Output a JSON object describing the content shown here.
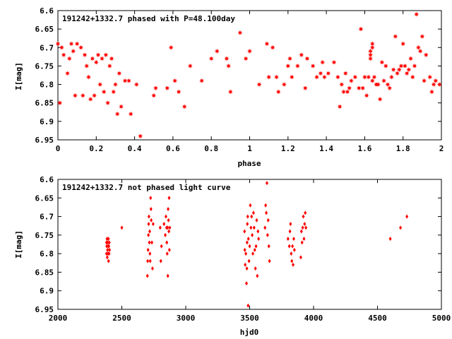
{
  "chart_data": [
    {
      "type": "scatter",
      "title": "191242+1332.7 phased with P=48.100day",
      "xlabel": "phase",
      "ylabel": "I[mag]",
      "xlim": [
        0,
        2
      ],
      "ylim": [
        6.95,
        6.6
      ],
      "y_inverted": true,
      "grid": false,
      "xticks": [
        "0",
        "0.2",
        "0.4",
        "0.6",
        "0.8",
        "1",
        "1.2",
        "1.4",
        "1.6",
        "1.8",
        "2"
      ],
      "yticks": [
        "6.6",
        "6.65",
        "6.7",
        "6.75",
        "6.8",
        "6.85",
        "6.9",
        "6.95"
      ],
      "marker": "filled-star",
      "color": "#ff0000",
      "points": [
        [
          0.0,
          6.69
        ],
        [
          0.01,
          6.85
        ],
        [
          0.02,
          6.7
        ],
        [
          0.03,
          6.72
        ],
        [
          0.05,
          6.77
        ],
        [
          0.06,
          6.73
        ],
        [
          0.07,
          6.69
        ],
        [
          0.08,
          6.71
        ],
        [
          0.09,
          6.83
        ],
        [
          0.1,
          6.69
        ],
        [
          0.12,
          6.7
        ],
        [
          0.13,
          6.83
        ],
        [
          0.14,
          6.72
        ],
        [
          0.15,
          6.75
        ],
        [
          0.16,
          6.78
        ],
        [
          0.17,
          6.84
        ],
        [
          0.18,
          6.73
        ],
        [
          0.19,
          6.83
        ],
        [
          0.2,
          6.74
        ],
        [
          0.21,
          6.72
        ],
        [
          0.22,
          6.8
        ],
        [
          0.23,
          6.73
        ],
        [
          0.24,
          6.82
        ],
        [
          0.25,
          6.72
        ],
        [
          0.26,
          6.85
        ],
        [
          0.27,
          6.75
        ],
        [
          0.28,
          6.73
        ],
        [
          0.29,
          6.82
        ],
        [
          0.3,
          6.8
        ],
        [
          0.31,
          6.88
        ],
        [
          0.32,
          6.77
        ],
        [
          0.33,
          6.86
        ],
        [
          0.35,
          6.79
        ],
        [
          0.37,
          6.79
        ],
        [
          0.38,
          6.88
        ],
        [
          0.41,
          6.8
        ],
        [
          0.43,
          6.94
        ],
        [
          0.5,
          6.83
        ],
        [
          0.51,
          6.81
        ],
        [
          0.57,
          6.81
        ],
        [
          0.59,
          6.7
        ],
        [
          0.61,
          6.79
        ],
        [
          0.63,
          6.82
        ],
        [
          0.66,
          6.86
        ],
        [
          0.69,
          6.75
        ],
        [
          0.75,
          6.79
        ],
        [
          0.8,
          6.73
        ],
        [
          0.83,
          6.71
        ],
        [
          0.88,
          6.73
        ],
        [
          0.89,
          6.75
        ],
        [
          0.9,
          6.82
        ],
        [
          0.95,
          6.66
        ],
        [
          0.98,
          6.73
        ],
        [
          1.0,
          6.71
        ],
        [
          1.05,
          6.8
        ],
        [
          1.09,
          6.69
        ],
        [
          1.1,
          6.78
        ],
        [
          1.12,
          6.7
        ],
        [
          1.14,
          6.78
        ],
        [
          1.15,
          6.82
        ],
        [
          1.18,
          6.8
        ],
        [
          1.2,
          6.75
        ],
        [
          1.21,
          6.73
        ],
        [
          1.22,
          6.78
        ],
        [
          1.25,
          6.75
        ],
        [
          1.27,
          6.72
        ],
        [
          1.29,
          6.81
        ],
        [
          1.3,
          6.73
        ],
        [
          1.33,
          6.75
        ],
        [
          1.35,
          6.78
        ],
        [
          1.37,
          6.77
        ],
        [
          1.38,
          6.74
        ],
        [
          1.39,
          6.78
        ],
        [
          1.41,
          6.77
        ],
        [
          1.44,
          6.74
        ],
        [
          1.46,
          6.78
        ],
        [
          1.47,
          6.86
        ],
        [
          1.48,
          6.8
        ],
        [
          1.49,
          6.82
        ],
        [
          1.5,
          6.77
        ],
        [
          1.51,
          6.82
        ],
        [
          1.52,
          6.81
        ],
        [
          1.53,
          6.79
        ],
        [
          1.55,
          6.78
        ],
        [
          1.57,
          6.81
        ],
        [
          1.58,
          6.65
        ],
        [
          1.59,
          6.81
        ],
        [
          1.6,
          6.78
        ],
        [
          1.61,
          6.83
        ],
        [
          1.62,
          6.78
        ],
        [
          1.63,
          6.71
        ],
        [
          1.63,
          6.72
        ],
        [
          1.63,
          6.73
        ],
        [
          1.64,
          6.69
        ],
        [
          1.64,
          6.7
        ],
        [
          1.64,
          6.79
        ],
        [
          1.65,
          6.78
        ],
        [
          1.66,
          6.8
        ],
        [
          1.67,
          6.8
        ],
        [
          1.68,
          6.84
        ],
        [
          1.69,
          6.74
        ],
        [
          1.7,
          6.79
        ],
        [
          1.71,
          6.75
        ],
        [
          1.72,
          6.8
        ],
        [
          1.73,
          6.81
        ],
        [
          1.74,
          6.78
        ],
        [
          1.75,
          6.76
        ],
        [
          1.76,
          6.67
        ],
        [
          1.77,
          6.77
        ],
        [
          1.78,
          6.76
        ],
        [
          1.79,
          6.75
        ],
        [
          1.8,
          6.69
        ],
        [
          1.81,
          6.75
        ],
        [
          1.82,
          6.77
        ],
        [
          1.83,
          6.76
        ],
        [
          1.84,
          6.73
        ],
        [
          1.85,
          6.78
        ],
        [
          1.86,
          6.75
        ],
        [
          1.87,
          6.61
        ],
        [
          1.88,
          6.7
        ],
        [
          1.89,
          6.71
        ],
        [
          1.9,
          6.67
        ],
        [
          1.91,
          6.79
        ],
        [
          1.92,
          6.72
        ],
        [
          1.94,
          6.78
        ],
        [
          1.95,
          6.82
        ],
        [
          1.96,
          6.8
        ],
        [
          1.97,
          6.79
        ],
        [
          1.99,
          6.8
        ]
      ]
    },
    {
      "type": "scatter",
      "title": "191242+1332.7 not phased light curve",
      "xlabel": "hjd0",
      "ylabel": "I[mag]",
      "xlim": [
        2000,
        5000
      ],
      "ylim": [
        6.95,
        6.6
      ],
      "y_inverted": true,
      "grid": false,
      "xticks": [
        "2000",
        "2500",
        "3000",
        "3500",
        "4000",
        "4500",
        "5000"
      ],
      "yticks": [
        "6.6",
        "6.65",
        "6.7",
        "6.75",
        "6.8",
        "6.85",
        "6.9",
        "6.95"
      ],
      "marker": "diamond",
      "color": "#ff0000",
      "points": [
        [
          2380,
          6.77
        ],
        [
          2380,
          6.8
        ],
        [
          2382,
          6.78
        ],
        [
          2384,
          6.76
        ],
        [
          2386,
          6.81
        ],
        [
          2388,
          6.79
        ],
        [
          2390,
          6.77
        ],
        [
          2392,
          6.8
        ],
        [
          2394,
          6.78
        ],
        [
          2395,
          6.76
        ],
        [
          2396,
          6.82
        ],
        [
          2398,
          6.78
        ],
        [
          2400,
          6.8
        ],
        [
          2402,
          6.77
        ],
        [
          2404,
          6.79
        ],
        [
          2500,
          6.73
        ],
        [
          2700,
          6.86
        ],
        [
          2702,
          6.82
        ],
        [
          2705,
          6.79
        ],
        [
          2708,
          6.75
        ],
        [
          2710,
          6.72
        ],
        [
          2712,
          6.7
        ],
        [
          2715,
          6.77
        ],
        [
          2718,
          6.74
        ],
        [
          2720,
          6.8
        ],
        [
          2722,
          6.82
        ],
        [
          2725,
          6.65
        ],
        [
          2728,
          6.68
        ],
        [
          2730,
          6.71
        ],
        [
          2735,
          6.77
        ],
        [
          2740,
          6.84
        ],
        [
          2745,
          6.72
        ],
        [
          2800,
          6.73
        ],
        [
          2805,
          6.82
        ],
        [
          2810,
          6.78
        ],
        [
          2830,
          6.72
        ],
        [
          2840,
          6.75
        ],
        [
          2845,
          6.7
        ],
        [
          2850,
          6.73
        ],
        [
          2852,
          6.77
        ],
        [
          2855,
          6.8
        ],
        [
          2858,
          6.73
        ],
        [
          2860,
          6.86
        ],
        [
          2862,
          6.68
        ],
        [
          2865,
          6.71
        ],
        [
          2868,
          6.74
        ],
        [
          2870,
          6.65
        ],
        [
          2872,
          6.79
        ],
        [
          2875,
          6.73
        ],
        [
          3460,
          6.74
        ],
        [
          3462,
          6.79
        ],
        [
          3465,
          6.83
        ],
        [
          3470,
          6.8
        ],
        [
          3475,
          6.88
        ],
        [
          3478,
          6.84
        ],
        [
          3480,
          6.77
        ],
        [
          3482,
          6.72
        ],
        [
          3485,
          6.7
        ],
        [
          3488,
          6.94
        ],
        [
          3490,
          6.76
        ],
        [
          3495,
          6.82
        ],
        [
          3500,
          6.78
        ],
        [
          3505,
          6.67
        ],
        [
          3510,
          6.73
        ],
        [
          3515,
          6.7
        ],
        [
          3520,
          6.75
        ],
        [
          3525,
          6.8
        ],
        [
          3530,
          6.69
        ],
        [
          3535,
          6.73
        ],
        [
          3540,
          6.79
        ],
        [
          3545,
          6.84
        ],
        [
          3550,
          6.78
        ],
        [
          3555,
          6.71
        ],
        [
          3560,
          6.86
        ],
        [
          3565,
          6.74
        ],
        [
          3570,
          6.76
        ],
        [
          3620,
          6.73
        ],
        [
          3625,
          6.67
        ],
        [
          3630,
          6.69
        ],
        [
          3635,
          6.61
        ],
        [
          3640,
          6.75
        ],
        [
          3645,
          6.71
        ],
        [
          3650,
          6.78
        ],
        [
          3655,
          6.82
        ],
        [
          3800,
          6.76
        ],
        [
          3810,
          6.78
        ],
        [
          3815,
          6.74
        ],
        [
          3820,
          6.72
        ],
        [
          3825,
          6.8
        ],
        [
          3830,
          6.82
        ],
        [
          3835,
          6.78
        ],
        [
          3840,
          6.83
        ],
        [
          3845,
          6.76
        ],
        [
          3850,
          6.79
        ],
        [
          3900,
          6.81
        ],
        [
          3905,
          6.74
        ],
        [
          3910,
          6.77
        ],
        [
          3915,
          6.73
        ],
        [
          3920,
          6.7
        ],
        [
          3925,
          6.76
        ],
        [
          3930,
          6.72
        ],
        [
          3935,
          6.69
        ],
        [
          3940,
          6.73
        ],
        [
          4600,
          6.76
        ],
        [
          4680,
          6.73
        ],
        [
          4730,
          6.7
        ]
      ]
    }
  ]
}
